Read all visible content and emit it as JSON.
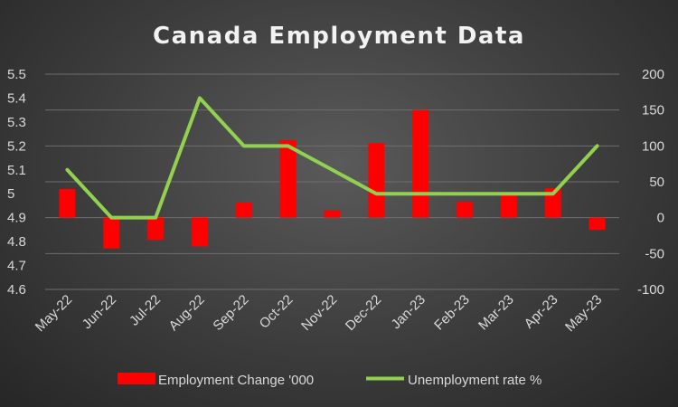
{
  "chart_data": {
    "type": "bar",
    "title": "Canada Employment Data",
    "xlabel": "",
    "ylabel": "",
    "categories": [
      "May-22",
      "Jun-22",
      "Jul-22",
      "Aug-22",
      "Sep-22",
      "Oct-22",
      "Nov-22",
      "Dec-22",
      "Jan-23",
      "Feb-23",
      "Mar-23",
      "Apr-23",
      "May-23"
    ],
    "series": [
      {
        "name": "Employment Change '000",
        "type": "bar",
        "axis": "secondary",
        "color": "#ff0000",
        "values": [
          40,
          -43,
          -31,
          -40,
          21,
          108,
          10,
          104,
          150,
          22,
          35,
          41,
          -17
        ]
      },
      {
        "name": "Unemployment rate %",
        "type": "line",
        "axis": "primary",
        "color": "#92d050",
        "values": [
          5.1,
          4.9,
          4.9,
          5.4,
          5.2,
          5.2,
          5.1,
          5.0,
          5.0,
          5.0,
          5.0,
          5.0,
          5.2
        ]
      }
    ],
    "y_primary": {
      "lim": [
        4.6,
        5.5
      ],
      "ticks": [
        "4.6",
        "4.7",
        "4.8",
        "4.9",
        "5",
        "5.1",
        "5.2",
        "5.3",
        "5.4",
        "5.5"
      ]
    },
    "y_secondary": {
      "lim": [
        -100,
        200
      ],
      "ticks": [
        "-100",
        "-50",
        "0",
        "50",
        "100",
        "150",
        "200"
      ]
    },
    "grid": true,
    "legend": "bottom"
  }
}
